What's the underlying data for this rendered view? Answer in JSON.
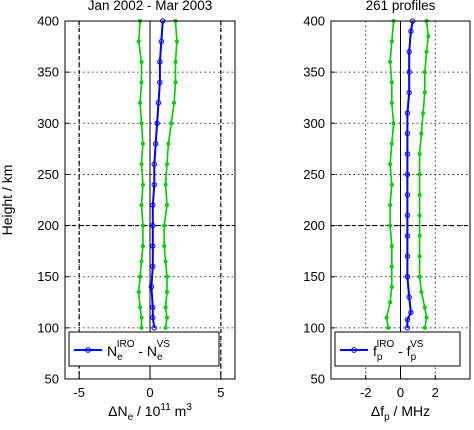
{
  "chart_data": [
    {
      "type": "line",
      "title": "Jan 2002 - Mar 2003",
      "xlabel": {
        "main": "ΔN",
        "sub": "e",
        "mid": " / 10",
        "sup": "11",
        "tail": " m",
        "sup2": "3"
      },
      "ylabel": "Height / km",
      "xlim": [
        -6,
        6
      ],
      "ylim": [
        50,
        400
      ],
      "xticks": [
        -5,
        0,
        5
      ],
      "yticks": [
        50,
        100,
        150,
        200,
        250,
        300,
        350,
        400
      ],
      "grid": "dotted",
      "dashed_x": [
        -5,
        5
      ],
      "dashed_y": [
        200
      ],
      "zero_line": 0,
      "legend": {
        "placement": "bottom",
        "parts": [
          "N",
          "e",
          "IRO",
          " - N",
          "e",
          "VS"
        ]
      },
      "colors": {
        "mean": "#0000ff",
        "spread": "#00cc00"
      },
      "series": [
        {
          "role": "left",
          "color": "#00cc00",
          "points": [
            [
              -0.6,
              100
            ],
            [
              -0.6,
              110
            ],
            [
              -0.7,
              120
            ],
            [
              -0.8,
              135
            ],
            [
              -0.7,
              150
            ],
            [
              -0.6,
              165
            ],
            [
              -0.5,
              180
            ],
            [
              -0.5,
              200
            ],
            [
              -0.6,
              220
            ],
            [
              -0.5,
              240
            ],
            [
              -0.6,
              260
            ],
            [
              -0.5,
              280
            ],
            [
              -0.6,
              300
            ],
            [
              -0.7,
              320
            ],
            [
              -0.6,
              340
            ],
            [
              -0.6,
              360
            ],
            [
              -0.8,
              380
            ],
            [
              -0.7,
              400
            ]
          ]
        },
        {
          "role": "mean",
          "color": "#0000ff",
          "points": [
            [
              0.3,
              100
            ],
            [
              0.2,
              110
            ],
            [
              0.2,
              120
            ],
            [
              0.1,
              140
            ],
            [
              0.2,
              160
            ],
            [
              0.2,
              180
            ],
            [
              0.2,
              200
            ],
            [
              0.2,
              220
            ],
            [
              0.3,
              240
            ],
            [
              0.3,
              260
            ],
            [
              0.4,
              280
            ],
            [
              0.5,
              300
            ],
            [
              0.6,
              320
            ],
            [
              0.7,
              340
            ],
            [
              0.7,
              360
            ],
            [
              0.8,
              380
            ],
            [
              0.9,
              400
            ]
          ]
        },
        {
          "role": "right",
          "color": "#00cc00",
          "points": [
            [
              1.1,
              100
            ],
            [
              1.2,
              110
            ],
            [
              1.1,
              120
            ],
            [
              1.2,
              135
            ],
            [
              1.2,
              150
            ],
            [
              1.1,
              165
            ],
            [
              1.0,
              180
            ],
            [
              1.0,
              200
            ],
            [
              1.2,
              220
            ],
            [
              1.1,
              240
            ],
            [
              1.2,
              260
            ],
            [
              1.3,
              280
            ],
            [
              1.5,
              300
            ],
            [
              1.7,
              320
            ],
            [
              1.8,
              340
            ],
            [
              1.8,
              360
            ],
            [
              1.9,
              380
            ],
            [
              1.8,
              400
            ]
          ]
        }
      ]
    },
    {
      "type": "line",
      "title": "261 profiles",
      "xlabel": {
        "main": "Δf",
        "sub": "p",
        "tail": " / MHz"
      },
      "ylabel": "",
      "xlim": [
        -4,
        4
      ],
      "ylim": [
        50,
        400
      ],
      "xticks": [
        -2,
        0,
        2
      ],
      "yticks": [
        50,
        100,
        150,
        200,
        250,
        300,
        350,
        400
      ],
      "grid": "dotted",
      "dashed_x": [],
      "dashed_y": [
        200
      ],
      "zero_line": 0,
      "legend": {
        "placement": "bottom",
        "parts": [
          "f",
          "p",
          "IRO",
          " - f",
          "p",
          "VS"
        ]
      },
      "colors": {
        "mean": "#0000ff",
        "spread": "#00cc00"
      },
      "series": [
        {
          "role": "left",
          "color": "#00cc00",
          "points": [
            [
              -0.7,
              100
            ],
            [
              -0.8,
              110
            ],
            [
              -0.6,
              125
            ],
            [
              -0.5,
              140
            ],
            [
              -0.5,
              160
            ],
            [
              -0.5,
              180
            ],
            [
              -0.6,
              200
            ],
            [
              -0.6,
              220
            ],
            [
              -0.5,
              240
            ],
            [
              -0.6,
              260
            ],
            [
              -0.5,
              280
            ],
            [
              -0.4,
              300
            ],
            [
              -0.5,
              320
            ],
            [
              -0.5,
              340
            ],
            [
              -0.6,
              360
            ],
            [
              -0.5,
              380
            ],
            [
              -0.4,
              400
            ]
          ]
        },
        {
          "role": "mean",
          "color": "#0000ff",
          "points": [
            [
              0.4,
              100
            ],
            [
              0.4,
              108
            ],
            [
              0.6,
              115
            ],
            [
              0.5,
              130
            ],
            [
              0.4,
              150
            ],
            [
              0.4,
              170
            ],
            [
              0.4,
              190
            ],
            [
              0.4,
              210
            ],
            [
              0.4,
              230
            ],
            [
              0.4,
              250
            ],
            [
              0.4,
              270
            ],
            [
              0.4,
              290
            ],
            [
              0.4,
              310
            ],
            [
              0.5,
              330
            ],
            [
              0.5,
              350
            ],
            [
              0.5,
              370
            ],
            [
              0.6,
              390
            ],
            [
              0.7,
              400
            ]
          ]
        },
        {
          "role": "right",
          "color": "#00cc00",
          "points": [
            [
              1.4,
              100
            ],
            [
              1.5,
              110
            ],
            [
              1.4,
              120
            ],
            [
              1.2,
              135
            ],
            [
              1.1,
              150
            ],
            [
              1.1,
              170
            ],
            [
              1.1,
              190
            ],
            [
              1.1,
              210
            ],
            [
              1.1,
              230
            ],
            [
              1.1,
              250
            ],
            [
              1.1,
              270
            ],
            [
              1.2,
              290
            ],
            [
              1.3,
              310
            ],
            [
              1.4,
              330
            ],
            [
              1.4,
              350
            ],
            [
              1.5,
              370
            ],
            [
              1.6,
              385
            ],
            [
              1.5,
              400
            ]
          ]
        }
      ]
    }
  ]
}
